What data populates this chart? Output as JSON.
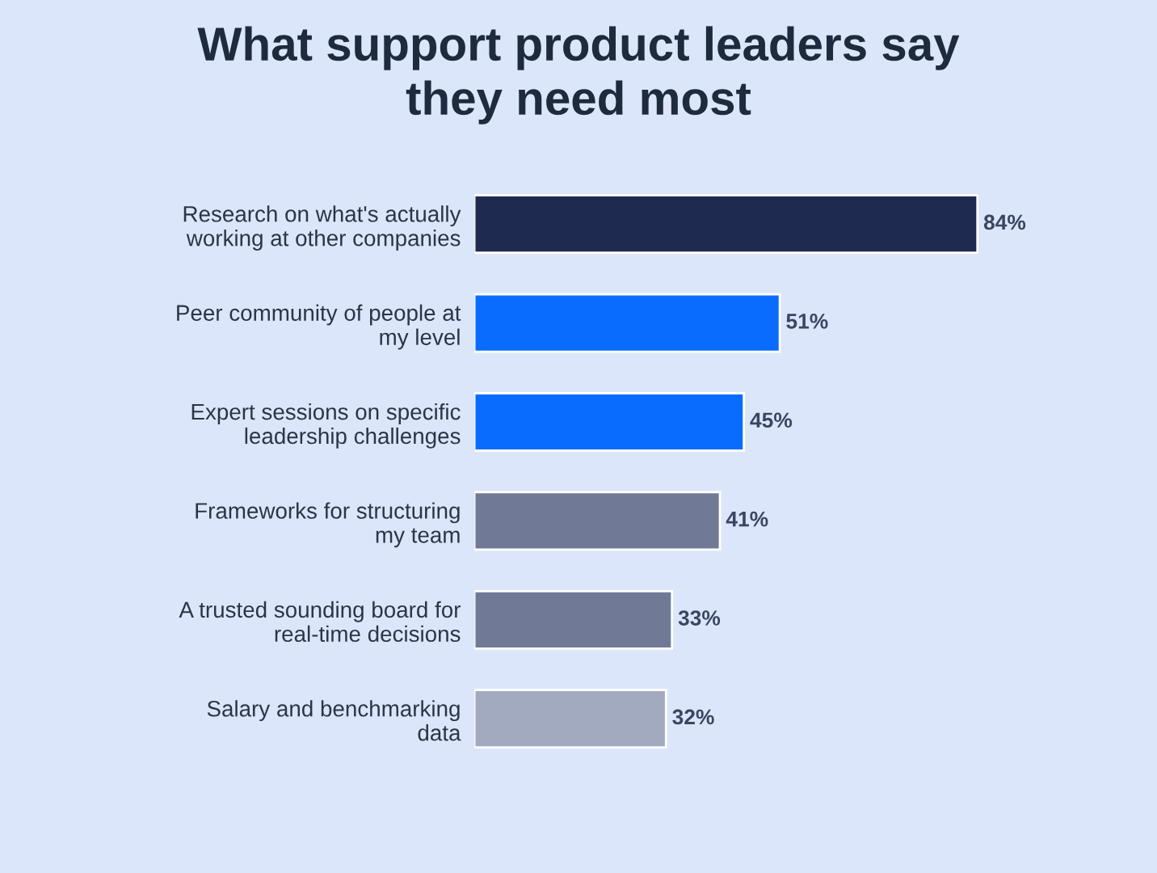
{
  "chart_data": {
    "type": "bar",
    "orientation": "horizontal",
    "title": "What support product leaders say they need most",
    "categories": [
      "Research on what's actually working at other companies",
      "Peer community of people at my level",
      "Expert sessions on specific leadership challenges",
      "Frameworks for structuring my team",
      "A trusted sounding board for real-time decisions",
      "Salary and benchmarking data"
    ],
    "values": [
      84,
      51,
      45,
      41,
      33,
      32
    ],
    "colors": [
      "#1e2a4f",
      "#0a6cff",
      "#0a6cff",
      "#707a96",
      "#707a96",
      "#a2aac0"
    ],
    "value_labels": [
      "84%",
      "51%",
      "45%",
      "41%",
      "33%",
      "32%"
    ],
    "grid": false,
    "legend": false
  }
}
